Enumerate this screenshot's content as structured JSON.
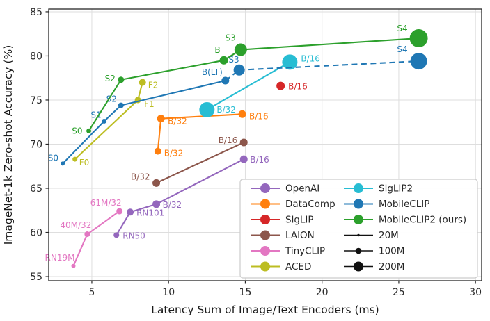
{
  "figure": {
    "xlabel": "Latency Sum of Image/Text Encoders (ms)",
    "ylabel": "ImageNet-1k Zero-shot Accuracy (%)"
  },
  "chart_data": {
    "type": "scatter",
    "title": "",
    "xlabel": "Latency Sum of Image/Text Encoders (ms)",
    "ylabel": "ImageNet-1k Zero-shot Accuracy (%)",
    "xlim": [
      2.19,
      30.4
    ],
    "ylim": [
      54.53,
      85.31
    ],
    "xticks": [
      5,
      10,
      15,
      20,
      25,
      30
    ],
    "yticks": [
      55,
      60,
      65,
      70,
      75,
      80,
      85
    ],
    "grid": true,
    "legend_position": "lower right",
    "colors": {
      "grid": "#dedede",
      "spine": "#262626",
      "tick_label": "#2b2b2b",
      "axis_label": "#1a1a1a",
      "legend_border": "#cccccc",
      "legend_text": "#262626",
      "size_marker": "#111111"
    },
    "series": [
      {
        "name": "OpenAI",
        "color": "#9467bd",
        "line": "solid",
        "points": [
          {
            "label": "RN50",
            "x": 6.6,
            "y": 59.7,
            "r": 4,
            "anchor": "start",
            "dx": 9,
            "dy": 5
          },
          {
            "label": "RN101",
            "x": 7.5,
            "y": 62.3,
            "r": 5,
            "anchor": "start",
            "dx": 9,
            "dy": 5
          },
          {
            "label": "B/32",
            "x": 9.2,
            "y": 63.2,
            "r": 5.5,
            "anchor": "start",
            "dx": 9,
            "dy": 5
          },
          {
            "label": "B/16",
            "x": 14.9,
            "y": 68.3,
            "r": 5.5,
            "anchor": "start",
            "dx": 9,
            "dy": 5
          }
        ]
      },
      {
        "name": "DataComp",
        "color": "#ff7f0e",
        "line": "solid",
        "points": [
          {
            "label": "B/32",
            "x": 9.3,
            "y": 69.2,
            "r": 5,
            "anchor": "start",
            "dx": 9,
            "dy": 7
          },
          {
            "label": "B/32",
            "x": 9.5,
            "y": 72.9,
            "r": 5.5,
            "anchor": "start",
            "dx": 10,
            "dy": 8
          },
          {
            "label": "B/16",
            "x": 14.8,
            "y": 73.4,
            "r": 5.5,
            "anchor": "start",
            "dx": 10,
            "dy": 7
          }
        ]
      },
      {
        "name": "SigLIP",
        "color": "#d62728",
        "line": "solid",
        "points": [
          {
            "label": "B/16",
            "x": 17.3,
            "y": 76.6,
            "r": 6,
            "anchor": "start",
            "dx": 11,
            "dy": 5
          }
        ]
      },
      {
        "name": "LAION",
        "color": "#8c564b",
        "line": "solid",
        "points": [
          {
            "label": "B/32",
            "x": 9.2,
            "y": 65.6,
            "r": 5.5,
            "anchor": "end",
            "dx": -9,
            "dy": -5
          },
          {
            "label": "B/16",
            "x": 14.9,
            "y": 70.2,
            "r": 5.5,
            "anchor": "end",
            "dx": -9,
            "dy": 1
          }
        ]
      },
      {
        "name": "TinyCLIP",
        "color": "#e377c2",
        "line": "solid",
        "points": [
          {
            "label": "RN19M",
            "x": 3.8,
            "y": 56.2,
            "r": 3,
            "anchor": "end",
            "dx": 2,
            "dy": -8
          },
          {
            "label": "40M/32",
            "x": 4.7,
            "y": 59.8,
            "r": 4,
            "anchor": "end",
            "dx": 6,
            "dy": -9
          },
          {
            "label": "61M/32",
            "x": 6.8,
            "y": 62.4,
            "r": 4.5,
            "anchor": "end",
            "dx": 3,
            "dy": -8
          }
        ]
      },
      {
        "name": "ACED",
        "color": "#bcbd22",
        "line": "solid",
        "points": [
          {
            "label": "F0",
            "x": 3.9,
            "y": 68.3,
            "r": 3.5,
            "anchor": "start",
            "dx": 6,
            "dy": 9
          },
          {
            "label": "F1",
            "x": 8.0,
            "y": 75.0,
            "r": 4.5,
            "anchor": "start",
            "dx": 9,
            "dy": 10
          },
          {
            "label": "F2",
            "x": 8.3,
            "y": 77.0,
            "r": 5,
            "anchor": "start",
            "dx": 8,
            "dy": 8
          }
        ]
      },
      {
        "name": "SigLIP2",
        "color": "#27bdd3",
        "line": "solid",
        "points": [
          {
            "label": "B/32",
            "x": 12.5,
            "y": 73.9,
            "r": 11,
            "anchor": "start",
            "dx": 14,
            "dy": 4
          },
          {
            "label": "B/16",
            "x": 17.9,
            "y": 79.3,
            "r": 11,
            "anchor": "start",
            "dx": 16,
            "dy": -1
          }
        ]
      },
      {
        "name": "MobileCLIP",
        "color": "#1f77b4",
        "line": "solid",
        "points": [
          {
            "label": "S0",
            "x": 3.1,
            "y": 67.8,
            "r": 3,
            "anchor": "end",
            "dx": -6,
            "dy": -4
          },
          {
            "label": "S1",
            "x": 5.8,
            "y": 72.6,
            "r": 3.5,
            "anchor": "end",
            "dx": -4,
            "dy": -5
          },
          {
            "label": "S2",
            "x": 6.9,
            "y": 74.4,
            "r": 4,
            "anchor": "end",
            "dx": -6,
            "dy": -5
          },
          {
            "label": "B(LT)",
            "x": 13.7,
            "y": 77.2,
            "r": 5.5,
            "anchor": "end",
            "dx": -4,
            "dy": -8
          },
          {
            "label": "S3",
            "x": 14.6,
            "y": 78.4,
            "r": 8,
            "anchor": "end",
            "dx": 0,
            "dy": -11,
            "dash_from_prev": true
          },
          {
            "label": "S4",
            "x": 26.3,
            "y": 79.4,
            "r": 12,
            "anchor": "end",
            "dx": -16,
            "dy": -13,
            "dash_from_prev": true
          }
        ]
      },
      {
        "name": "MobileCLIP2 (ours)",
        "color": "#2ca02c",
        "line": "solid",
        "points": [
          {
            "label": "S0",
            "x": 4.8,
            "y": 71.5,
            "r": 3.5,
            "anchor": "end",
            "dx": -9,
            "dy": 4
          },
          {
            "label": "S2",
            "x": 6.9,
            "y": 77.3,
            "r": 4.5,
            "anchor": "end",
            "dx": -8,
            "dy": 2
          },
          {
            "label": "B",
            "x": 13.6,
            "y": 79.5,
            "r": 6,
            "anchor": "end",
            "dx": -5,
            "dy": -11
          },
          {
            "label": "S3",
            "x": 14.7,
            "y": 80.7,
            "r": 9,
            "anchor": "end",
            "dx": -7,
            "dy": -13
          },
          {
            "label": "S4",
            "x": 26.3,
            "y": 82.0,
            "r": 13,
            "anchor": "end",
            "dx": -16,
            "dy": -10
          }
        ]
      }
    ],
    "size_legend": [
      {
        "label": "20M",
        "r": 1.8
      },
      {
        "label": "100M",
        "r": 4.3
      },
      {
        "label": "200M",
        "r": 7
      }
    ]
  }
}
